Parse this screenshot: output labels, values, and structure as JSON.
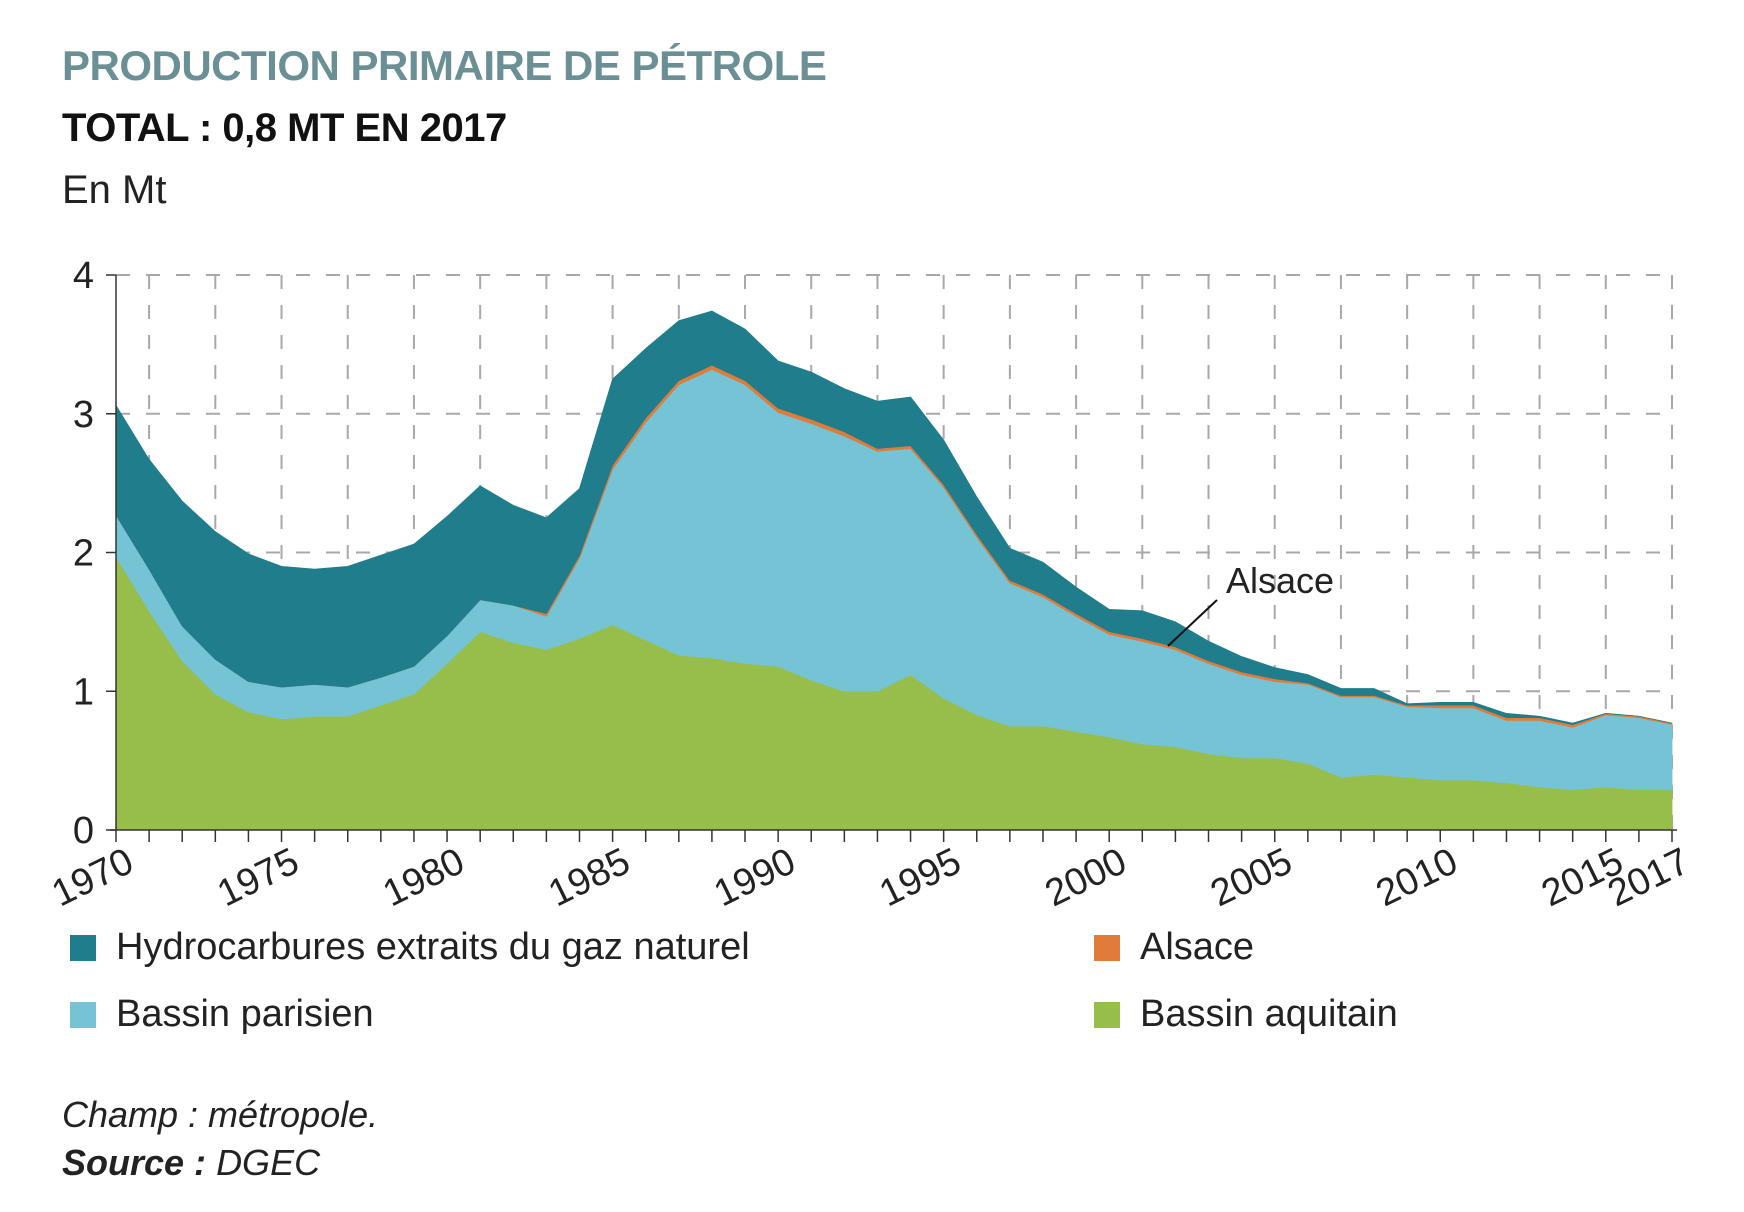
{
  "header": {
    "title": "PRODUCTION PRIMAIRE DE PÉTROLE",
    "subtitle": "TOTAL : 0,8 MT EN 2017",
    "unit": "En Mt"
  },
  "annotation": {
    "label": "Alsace"
  },
  "footer": {
    "scope": "Champ : métropole.",
    "source_label": "Source :",
    "source_value": "DGEC"
  },
  "chart_data": {
    "type": "area",
    "stacked": true,
    "ylim": [
      0,
      4
    ],
    "yticks": [
      "0",
      "1",
      "2",
      "3",
      "4"
    ],
    "xlim": [
      1970,
      2017
    ],
    "xticks": [
      "1970",
      "1975",
      "1980",
      "1985",
      "1990",
      "1995",
      "2000",
      "2005",
      "2010",
      "2015",
      "2017"
    ],
    "x": [
      1970,
      1971,
      1972,
      1973,
      1974,
      1975,
      1976,
      1977,
      1978,
      1979,
      1980,
      1981,
      1982,
      1983,
      1984,
      1985,
      1986,
      1987,
      1988,
      1989,
      1990,
      1991,
      1992,
      1993,
      1994,
      1995,
      1996,
      1997,
      1998,
      1999,
      2000,
      2001,
      2002,
      2003,
      2004,
      2005,
      2006,
      2007,
      2008,
      2009,
      2010,
      2011,
      2012,
      2013,
      2014,
      2015,
      2016,
      2017
    ],
    "grid": true,
    "legend_position": "bottom",
    "series": [
      {
        "name": "Bassin aquitain",
        "color": "#97bd4b",
        "values": [
          1.97,
          1.58,
          1.22,
          0.98,
          0.85,
          0.8,
          0.82,
          0.82,
          0.9,
          0.98,
          1.2,
          1.43,
          1.35,
          1.3,
          1.38,
          1.48,
          1.37,
          1.26,
          1.24,
          1.2,
          1.18,
          1.08,
          1.0,
          1.0,
          1.12,
          0.95,
          0.83,
          0.75,
          0.75,
          0.71,
          0.67,
          0.62,
          0.6,
          0.55,
          0.52,
          0.52,
          0.48,
          0.38,
          0.4,
          0.38,
          0.36,
          0.36,
          0.34,
          0.31,
          0.29,
          0.31,
          0.29,
          0.29
        ]
      },
      {
        "name": "Bassin parisien",
        "color": "#74c4d6",
        "values": [
          0.3,
          0.3,
          0.25,
          0.25,
          0.22,
          0.23,
          0.23,
          0.21,
          0.2,
          0.2,
          0.2,
          0.23,
          0.27,
          0.24,
          0.58,
          1.12,
          1.57,
          1.95,
          2.08,
          2.01,
          1.83,
          1.85,
          1.84,
          1.73,
          1.63,
          1.52,
          1.28,
          1.03,
          0.93,
          0.83,
          0.74,
          0.74,
          0.7,
          0.65,
          0.6,
          0.55,
          0.57,
          0.58,
          0.56,
          0.51,
          0.52,
          0.52,
          0.45,
          0.48,
          0.45,
          0.52,
          0.52,
          0.47
        ]
      },
      {
        "name": "Alsace",
        "color": "#e07b3a",
        "values": [
          0,
          0,
          0,
          0,
          0,
          0,
          0,
          0,
          0,
          0,
          0,
          0,
          0,
          0.02,
          0.02,
          0.03,
          0.03,
          0.03,
          0.03,
          0.03,
          0.03,
          0.03,
          0.03,
          0.02,
          0.02,
          0.02,
          0.02,
          0.02,
          0.02,
          0.02,
          0.02,
          0.02,
          0.02,
          0.02,
          0.02,
          0.02,
          0.01,
          0.01,
          0.01,
          0.01,
          0.02,
          0.02,
          0.02,
          0.02,
          0.02,
          0.01,
          0.01,
          0.01
        ]
      },
      {
        "name": "Hydrocarbures extraits du gaz naturel",
        "color": "#1f7d8c",
        "values": [
          0.79,
          0.79,
          0.9,
          0.92,
          0.92,
          0.87,
          0.83,
          0.87,
          0.88,
          0.88,
          0.86,
          0.82,
          0.72,
          0.69,
          0.48,
          0.62,
          0.5,
          0.43,
          0.39,
          0.37,
          0.34,
          0.34,
          0.31,
          0.34,
          0.35,
          0.32,
          0.27,
          0.23,
          0.23,
          0.19,
          0.16,
          0.2,
          0.18,
          0.14,
          0.11,
          0.08,
          0.06,
          0.05,
          0.05,
          0.01,
          0.02,
          0.02,
          0.03,
          0.01,
          0.01,
          0.0,
          0.0,
          0.0
        ]
      }
    ]
  }
}
